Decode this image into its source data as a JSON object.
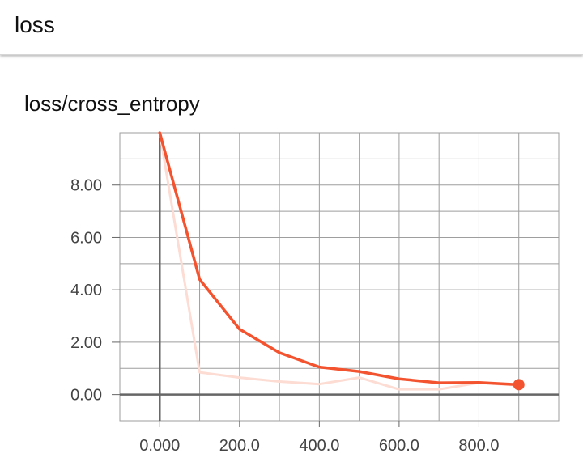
{
  "header": {
    "title": "loss"
  },
  "card": {
    "title": "loss/cross_entropy"
  },
  "colors": {
    "main": "#f4532f",
    "smoothed_raw": "#fcdcd3",
    "grid": "#9e9e9e",
    "axis": "#666666"
  },
  "chart_data": {
    "type": "line",
    "title": "loss/cross_entropy",
    "xlabel": "",
    "ylabel": "",
    "xlim": [
      -100,
      1000
    ],
    "ylim": [
      -1,
      10
    ],
    "x_ticks": [
      0,
      200,
      400,
      600,
      800
    ],
    "x_tick_labels": [
      "0.000",
      "200.0",
      "400.0",
      "600.0",
      "800.0"
    ],
    "y_ticks": [
      0,
      2,
      4,
      6,
      8
    ],
    "y_tick_labels": [
      "0.00",
      "2.00",
      "4.00",
      "6.00",
      "8.00"
    ],
    "grid": true,
    "series": [
      {
        "role": "raw",
        "x": [
          0,
          100,
          200,
          300,
          400,
          500,
          600,
          700,
          800,
          900
        ],
        "values": [
          10.0,
          0.85,
          0.65,
          0.5,
          0.4,
          0.65,
          0.2,
          0.2,
          0.45,
          0.35
        ]
      },
      {
        "role": "smoothed",
        "x": [
          0,
          100,
          200,
          300,
          400,
          500,
          600,
          700,
          800,
          900
        ],
        "values": [
          10.0,
          4.4,
          2.5,
          1.6,
          1.05,
          0.88,
          0.6,
          0.45,
          0.46,
          0.38
        ]
      }
    ],
    "last_point_marker": true
  }
}
